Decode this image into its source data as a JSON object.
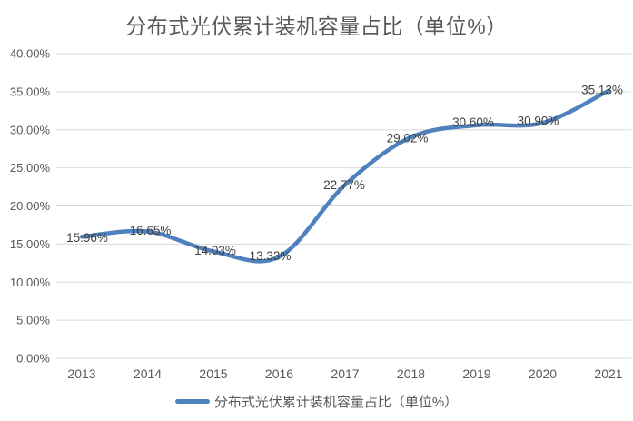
{
  "chart_data": {
    "type": "line",
    "title": "分布式光伏累计装机容量占比（单位%）",
    "categories": [
      "2013",
      "2014",
      "2015",
      "2016",
      "2017",
      "2018",
      "2019",
      "2020",
      "2021"
    ],
    "series": [
      {
        "name": "分布式光伏累计装机容量占比（单位%）",
        "values": [
          15.96,
          16.65,
          14.03,
          13.33,
          22.77,
          29.02,
          30.6,
          30.9,
          35.13
        ]
      }
    ],
    "data_labels": [
      "15.96%",
      "16.65%",
      "14.03%",
      "13.33%",
      "22.77%",
      "29.02%",
      "30.60%",
      "30.90%",
      "35.13%"
    ],
    "y_ticks": [
      "0.00%",
      "5.00%",
      "10.00%",
      "15.00%",
      "20.00%",
      "25.00%",
      "30.00%",
      "35.00%",
      "40.00%"
    ],
    "y_tick_values": [
      0,
      5,
      10,
      15,
      20,
      25,
      30,
      35,
      40
    ],
    "ylim": [
      0,
      40
    ],
    "xlabel": "",
    "ylabel": "",
    "grid": true,
    "legend_position": "bottom",
    "line_color": "#4F81BD",
    "gridline_color": "#D9D9D9",
    "axis_text_color": "#595959",
    "label_color": "#3F3F3F"
  }
}
